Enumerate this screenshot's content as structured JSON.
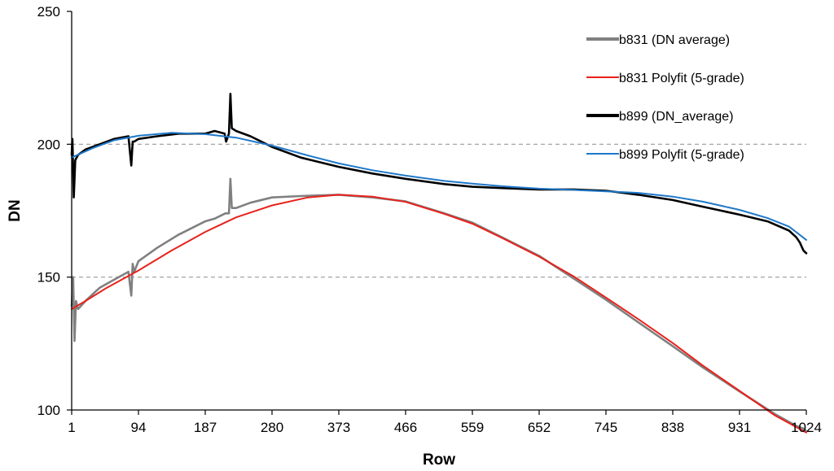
{
  "chart_data": {
    "type": "line",
    "title": "",
    "xlabel": "Row",
    "ylabel": "DN",
    "xlim": [
      1,
      1024
    ],
    "ylim": [
      100,
      250
    ],
    "x_ticks": [
      1,
      94,
      187,
      280,
      373,
      466,
      559,
      652,
      745,
      838,
      931,
      1024
    ],
    "x_tick_labels": [
      "1",
      "94",
      "187",
      "280",
      "373",
      "466",
      "559",
      "652",
      "745",
      "838",
      "931",
      "1024"
    ],
    "y_ticks": [
      100,
      150,
      200,
      250
    ],
    "y_tick_labels": [
      "100",
      "150",
      "200",
      "250"
    ],
    "gridlines": {
      "y": [
        150,
        200
      ],
      "style": "dashed"
    },
    "legend_position": "top-right",
    "series": [
      {
        "name": "b831 (DN average)",
        "color": "#808080",
        "x": [
          1,
          3,
          5,
          7,
          10,
          20,
          40,
          60,
          80,
          84,
          86,
          88,
          94,
          120,
          150,
          187,
          200,
          215,
          220,
          222,
          224,
          226,
          230,
          250,
          280,
          320,
          373,
          420,
          466,
          520,
          559,
          600,
          652,
          700,
          745,
          790,
          838,
          880,
          931,
          980,
          1010,
          1020,
          1024
        ],
        "y": [
          139,
          150,
          126,
          141,
          138,
          141,
          146,
          149,
          152,
          143,
          155,
          152,
          156,
          161,
          166,
          171,
          172,
          174,
          174,
          187,
          176,
          176,
          176,
          178,
          180,
          180.5,
          181,
          180,
          178.5,
          174,
          170.5,
          165,
          158,
          149.5,
          141.5,
          133,
          124,
          116,
          107,
          98.5,
          94,
          93,
          92
        ]
      },
      {
        "name": "b831 Polyfit (5-grade)",
        "color": "#e8221b",
        "x": [
          1,
          20,
          50,
          94,
          140,
          187,
          230,
          280,
          330,
          373,
          420,
          466,
          520,
          559,
          600,
          652,
          700,
          745,
          790,
          838,
          880,
          931,
          980,
          1024
        ],
        "y": [
          138,
          141,
          146,
          152.5,
          160,
          167,
          172.5,
          177,
          180,
          181,
          180.3,
          178.3,
          173.8,
          170.1,
          164.8,
          157.7,
          150.3,
          142.3,
          134.2,
          125.2,
          116.7,
          107.2,
          98,
          91.5
        ]
      },
      {
        "name": "b899 (DN_average)",
        "color": "#000000",
        "x": [
          1,
          2,
          4,
          6,
          10,
          20,
          40,
          60,
          80,
          84,
          86,
          88,
          94,
          120,
          150,
          187,
          200,
          214,
          216,
          220,
          222,
          224,
          230,
          250,
          280,
          320,
          373,
          420,
          466,
          520,
          559,
          600,
          652,
          700,
          745,
          790,
          838,
          880,
          931,
          970,
          1000,
          1010,
          1015,
          1020,
          1024
        ],
        "y": [
          196,
          202,
          180,
          194,
          196,
          198,
          200,
          202,
          203,
          192,
          201,
          201,
          202,
          203,
          204,
          204,
          205,
          204,
          201,
          204,
          219,
          206,
          205,
          203,
          199,
          195,
          191.5,
          189,
          187,
          185,
          184,
          183.5,
          183,
          183,
          182.5,
          181,
          179,
          176.5,
          173.5,
          171,
          167.5,
          165,
          163,
          160,
          159
        ]
      },
      {
        "name": "b899 Polyfit (5-grade)",
        "color": "#1f78c8",
        "x": [
          1,
          30,
          60,
          94,
          140,
          187,
          230,
          280,
          330,
          373,
          420,
          466,
          520,
          559,
          600,
          652,
          700,
          745,
          790,
          838,
          880,
          931,
          970,
          1000,
          1024
        ],
        "y": [
          195,
          198.5,
          201.5,
          203.2,
          204.3,
          203.8,
          202.5,
          199.5,
          195.8,
          192.8,
          190.2,
          188.2,
          186.2,
          185.2,
          184.2,
          183.3,
          182.8,
          182.3,
          181.7,
          180.3,
          178.4,
          175.3,
          172.2,
          169,
          164
        ]
      }
    ]
  }
}
